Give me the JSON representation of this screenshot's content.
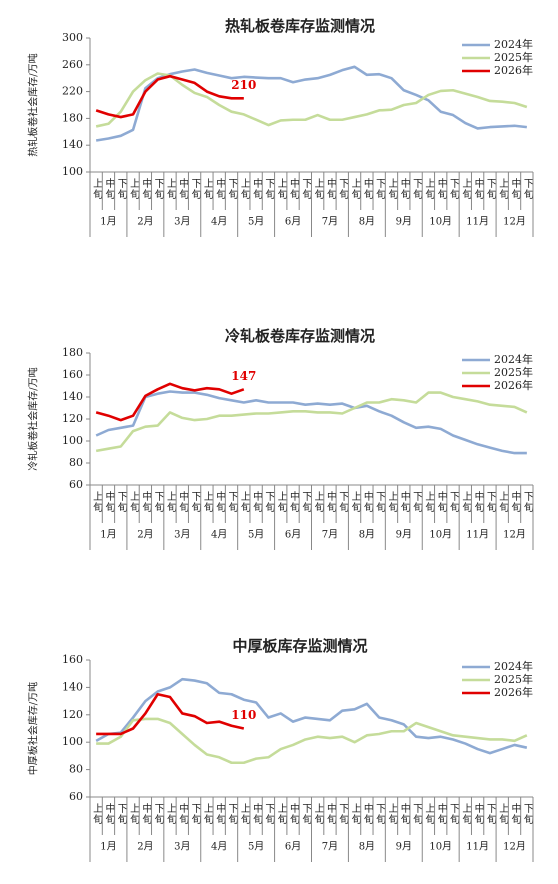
{
  "chart_data": [
    {
      "type": "line",
      "title": "热轧板卷库存监测情况",
      "y_label": "热轧板卷社会库存/万吨",
      "categories": [
        "上旬",
        "中旬",
        "下旬",
        "上旬",
        "中旬",
        "下旬",
        "上旬",
        "中旬",
        "下旬",
        "上旬",
        "中旬",
        "下旬",
        "上旬",
        "中旬",
        "下旬",
        "上旬",
        "中旬",
        "下旬",
        "上旬",
        "中旬",
        "下旬",
        "上旬",
        "中旬",
        "下旬",
        "上旬",
        "中旬",
        "下旬",
        "上旬",
        "中旬",
        "下旬",
        "上旬",
        "中旬",
        "下旬",
        "上旬",
        "中旬",
        "下旬"
      ],
      "months": [
        "1月",
        "2月",
        "3月",
        "4月",
        "5月",
        "6月",
        "7月",
        "8月",
        "9月",
        "10月",
        "11月",
        "12月"
      ],
      "ylim": [
        100,
        300
      ],
      "yticks": [
        100,
        140,
        180,
        220,
        260,
        300
      ],
      "legend": "upper right",
      "series": [
        {
          "name": "2024年",
          "color": "#8eaad3",
          "values": [
            147,
            150,
            154,
            163,
            225,
            240,
            246,
            250,
            253,
            248,
            244,
            240,
            242,
            241,
            240,
            240,
            234,
            238,
            240,
            245,
            252,
            257,
            245,
            246,
            240,
            222,
            215,
            207,
            190,
            185,
            173,
            165,
            167,
            168,
            169,
            167
          ]
        },
        {
          "name": "2025年",
          "color": "#c5dc9a",
          "values": [
            168,
            172,
            190,
            220,
            237,
            247,
            244,
            230,
            218,
            212,
            200,
            190,
            186,
            178,
            170,
            177,
            178,
            178,
            185,
            178,
            178,
            182,
            186,
            192,
            193,
            200,
            203,
            215,
            221,
            222,
            217,
            212,
            206,
            205,
            203,
            197
          ]
        },
        {
          "name": "2026年",
          "color": "#e00000",
          "values": [
            192,
            186,
            182,
            186,
            220,
            238,
            243,
            238,
            233,
            220,
            213,
            210,
            210,
            null,
            null,
            null,
            null,
            null,
            null,
            null,
            null,
            null,
            null,
            null,
            null,
            null,
            null,
            null,
            null,
            null,
            null,
            null,
            null,
            null,
            null,
            null
          ]
        }
      ]
    },
    {
      "type": "line",
      "title": "冷轧板卷库存监测情况",
      "y_label": "冷轧板卷社会库存/万吨",
      "categories": [
        "上旬",
        "中旬",
        "下旬",
        "上旬",
        "中旬",
        "下旬",
        "上旬",
        "中旬",
        "下旬",
        "上旬",
        "中旬",
        "下旬",
        "上旬",
        "中旬",
        "下旬",
        "上旬",
        "中旬",
        "下旬",
        "上旬",
        "中旬",
        "下旬",
        "上旬",
        "中旬",
        "下旬",
        "上旬",
        "中旬",
        "下旬",
        "上旬",
        "中旬",
        "下旬",
        "上旬",
        "中旬",
        "下旬",
        "上旬",
        "中旬",
        "下旬"
      ],
      "months": [
        "1月",
        "2月",
        "3月",
        "4月",
        "5月",
        "6月",
        "7月",
        "8月",
        "9月",
        "10月",
        "11月",
        "12月"
      ],
      "ylim": [
        60,
        180
      ],
      "yticks": [
        60,
        80,
        100,
        120,
        140,
        160,
        180
      ],
      "legend": "upper right",
      "series": [
        {
          "name": "2024年",
          "color": "#8eaad3",
          "values": [
            105,
            110,
            112,
            114,
            140,
            143,
            145,
            144,
            144,
            142,
            139,
            137,
            135,
            137,
            135,
            135,
            135,
            133,
            134,
            133,
            134,
            130,
            132,
            127,
            123,
            117,
            112,
            113,
            111,
            105,
            101,
            97,
            94,
            91,
            89,
            89
          ]
        },
        {
          "name": "2025年",
          "color": "#c5dc9a",
          "values": [
            91,
            93,
            95,
            109,
            113,
            114,
            126,
            121,
            119,
            120,
            123,
            123,
            124,
            125,
            125,
            126,
            127,
            127,
            126,
            126,
            125,
            130,
            135,
            135,
            138,
            137,
            135,
            144,
            144,
            140,
            138,
            136,
            133,
            132,
            131,
            126
          ]
        },
        {
          "name": "2026年",
          "color": "#e00000",
          "values": [
            126,
            123,
            119,
            123,
            141,
            147,
            152,
            148,
            146,
            148,
            147,
            143,
            147,
            null,
            null,
            null,
            null,
            null,
            null,
            null,
            null,
            null,
            null,
            null,
            null,
            null,
            null,
            null,
            null,
            null,
            null,
            null,
            null,
            null,
            null,
            null
          ]
        }
      ]
    },
    {
      "type": "line",
      "title": "中厚板库存监测情况",
      "y_label": "中厚板社会库存/万吨",
      "categories": [
        "上旬",
        "中旬",
        "下旬",
        "上旬",
        "中旬",
        "下旬",
        "上旬",
        "中旬",
        "下旬",
        "上旬",
        "中旬",
        "下旬",
        "上旬",
        "中旬",
        "下旬",
        "上旬",
        "中旬",
        "下旬",
        "上旬",
        "中旬",
        "下旬",
        "上旬",
        "中旬",
        "下旬",
        "上旬",
        "中旬",
        "下旬",
        "上旬",
        "中旬",
        "下旬",
        "上旬",
        "中旬",
        "下旬",
        "上旬",
        "中旬",
        "下旬"
      ],
      "months": [
        "1月",
        "2月",
        "3月",
        "4月",
        "5月",
        "6月",
        "7月",
        "8月",
        "9月",
        "10月",
        "11月",
        "12月"
      ],
      "ylim": [
        60,
        160
      ],
      "yticks": [
        60,
        80,
        100,
        120,
        140,
        160
      ],
      "legend": "upper right",
      "series": [
        {
          "name": "2024年",
          "color": "#8eaad3",
          "values": [
            101,
            106,
            107,
            118,
            130,
            137,
            140,
            146,
            145,
            143,
            136,
            135,
            131,
            129,
            118,
            121,
            115,
            118,
            117,
            116,
            123,
            124,
            128,
            118,
            116,
            113,
            104,
            103,
            104,
            102,
            99,
            95,
            92,
            95,
            98,
            96
          ]
        },
        {
          "name": "2025年",
          "color": "#c5dc9a",
          "values": [
            99,
            99,
            104,
            116,
            117,
            117,
            114,
            106,
            98,
            91,
            89,
            85,
            85,
            88,
            89,
            95,
            98,
            102,
            104,
            103,
            104,
            100,
            105,
            106,
            108,
            108,
            114,
            111,
            108,
            105,
            104,
            103,
            102,
            102,
            101,
            105
          ]
        },
        {
          "name": "2026年",
          "color": "#e00000",
          "values": [
            106,
            106,
            106,
            110,
            121,
            135,
            133,
            121,
            119,
            114,
            115,
            112,
            110,
            null,
            null,
            null,
            null,
            null,
            null,
            null,
            null,
            null,
            null,
            null,
            null,
            null,
            null,
            null,
            null,
            null,
            null,
            null,
            null,
            null,
            null,
            null
          ]
        }
      ]
    }
  ]
}
